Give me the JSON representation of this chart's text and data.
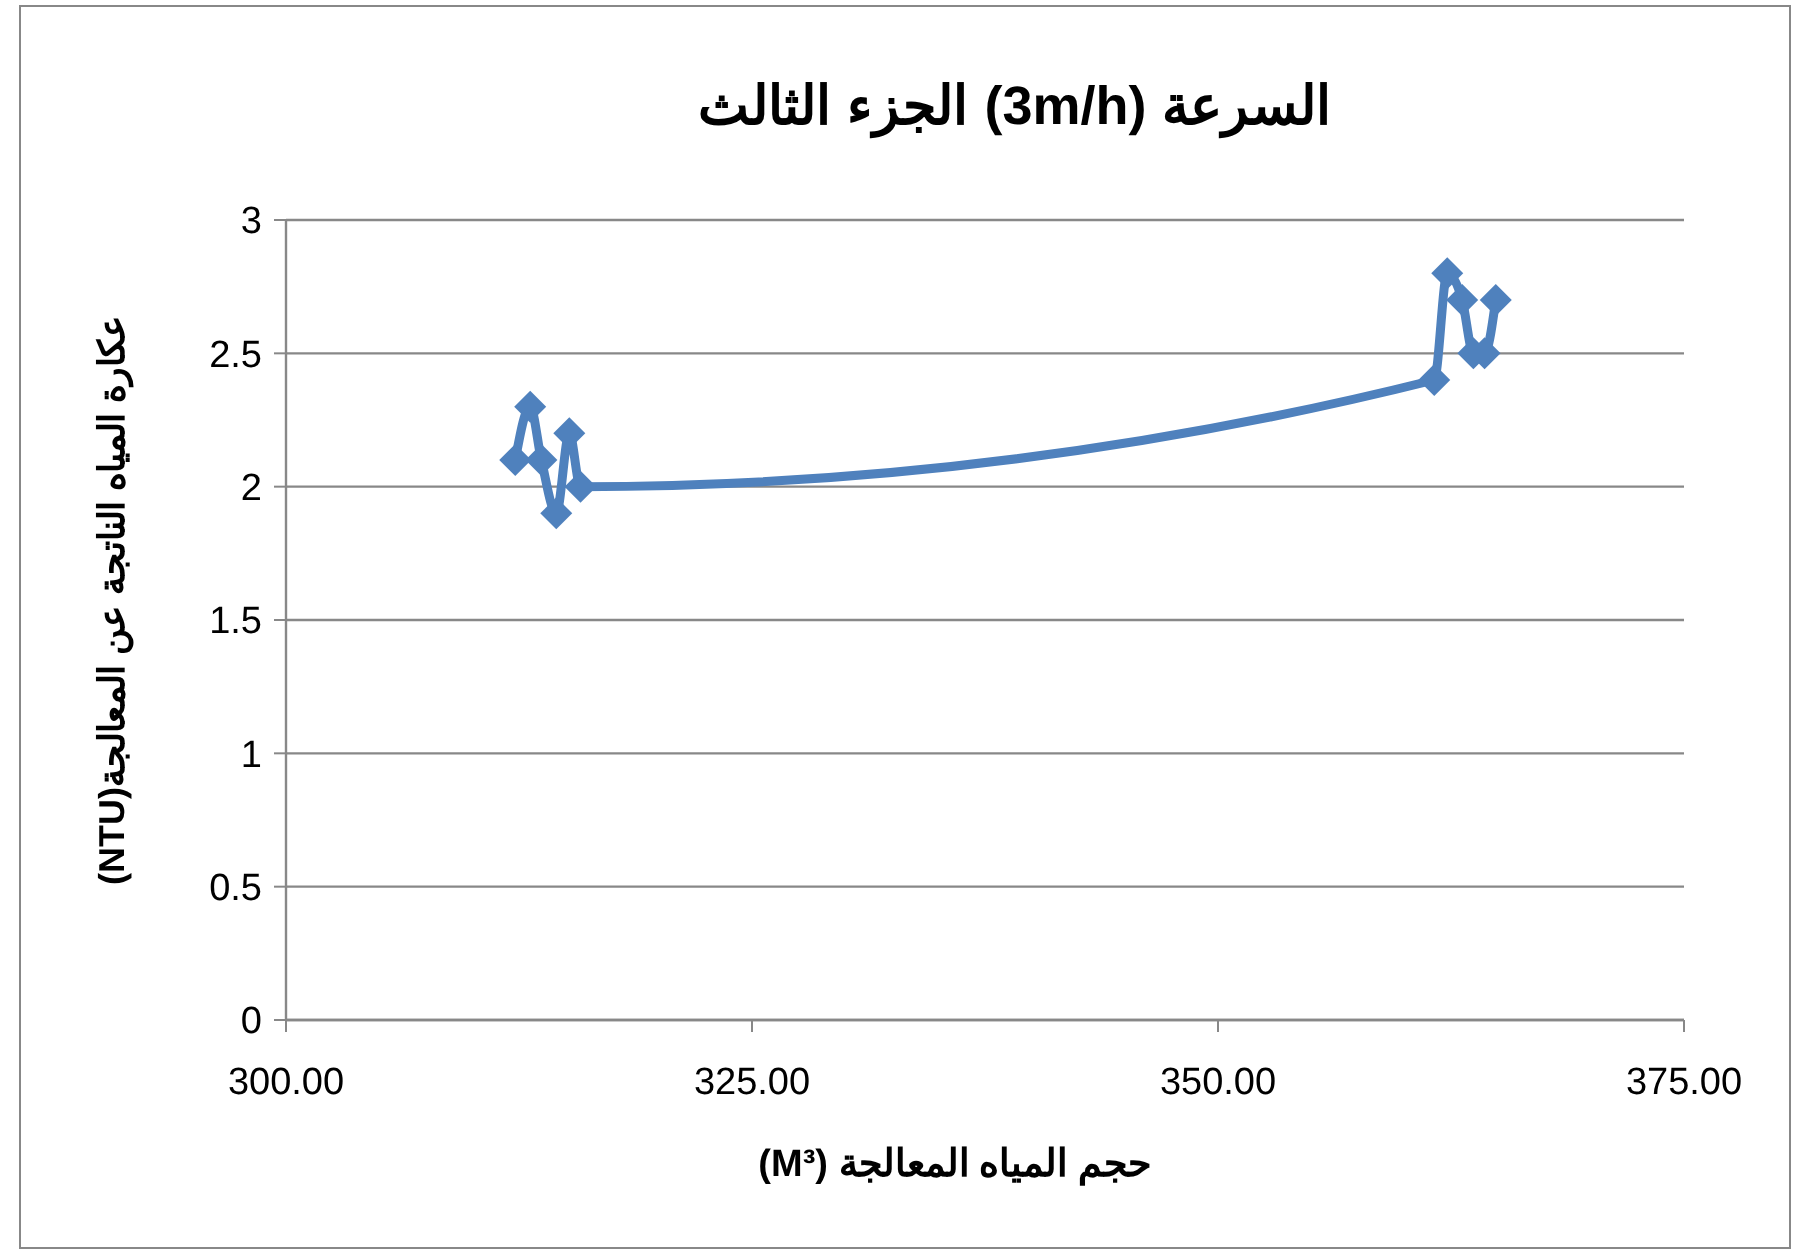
{
  "chart_data": {
    "type": "line",
    "title": "السرعة (3m/h) الجزء الثالث",
    "xlabel": "حجم المياه المعالجة (M³)",
    "ylabel": "عكارة المياه الناتجة عن المعالجة(NTU)",
    "x": [
      312.3,
      313.1,
      313.7,
      314.5,
      315.2,
      315.8,
      361.6,
      362.3,
      363.1,
      363.7,
      364.3,
      364.9
    ],
    "series": [
      {
        "color": "#4f81bd",
        "values": [
          2.1,
          2.3,
          2.1,
          1.9,
          2.2,
          2.0,
          2.4,
          2.8,
          2.7,
          2.5,
          2.5,
          2.7
        ]
      }
    ],
    "xlim": [
      300,
      375
    ],
    "xticks": [
      {
        "value": 300,
        "label": "300.00"
      },
      {
        "value": 325,
        "label": "325.00"
      },
      {
        "value": 350,
        "label": "350.00"
      },
      {
        "value": 375,
        "label": "375.00"
      }
    ],
    "ylim": [
      0,
      3
    ],
    "yticks": [
      0,
      0.5,
      1,
      1.5,
      2,
      2.5,
      3
    ],
    "grid": "y",
    "marker": "diamond",
    "line_style": "solid"
  }
}
